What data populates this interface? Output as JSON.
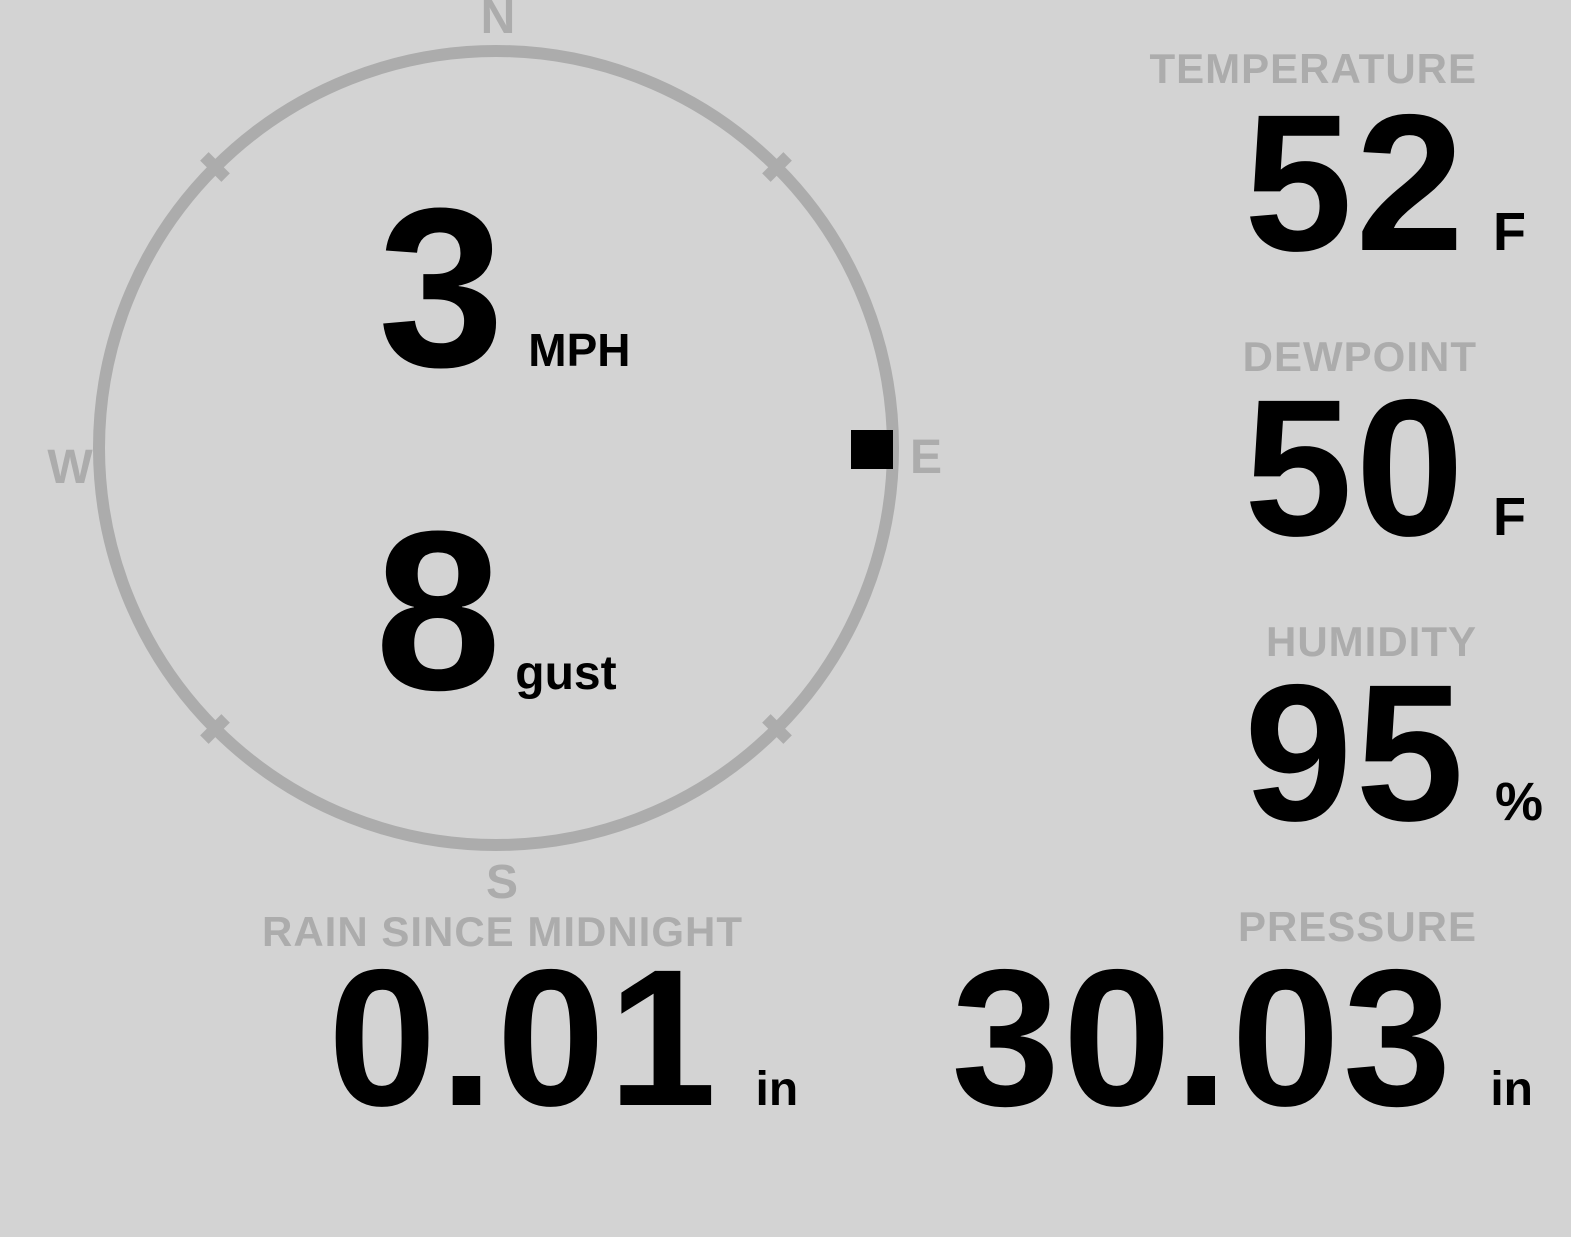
{
  "colors": {
    "bg": "#d3d3d3",
    "muted": "#acacac",
    "ink": "#000000"
  },
  "compass": {
    "directions": {
      "n": "N",
      "e": "E",
      "s": "S",
      "w": "W"
    },
    "wind_speed": "3",
    "wind_speed_unit": "MPH",
    "wind_gust": "8",
    "wind_gust_unit": "gust",
    "wind_direction_name": "east"
  },
  "metrics": {
    "temperature": {
      "label": "TEMPERATURE",
      "value": "52",
      "unit": "F"
    },
    "dewpoint": {
      "label": "DEWPOINT",
      "value": "50",
      "unit": "F"
    },
    "humidity": {
      "label": "HUMIDITY",
      "value": "95",
      "unit": "%"
    },
    "rain": {
      "label": "RAIN SINCE MIDNIGHT",
      "value": "0.01",
      "unit": "in"
    },
    "pressure": {
      "label": "PRESSURE",
      "value": "30.03",
      "unit": "in"
    }
  }
}
